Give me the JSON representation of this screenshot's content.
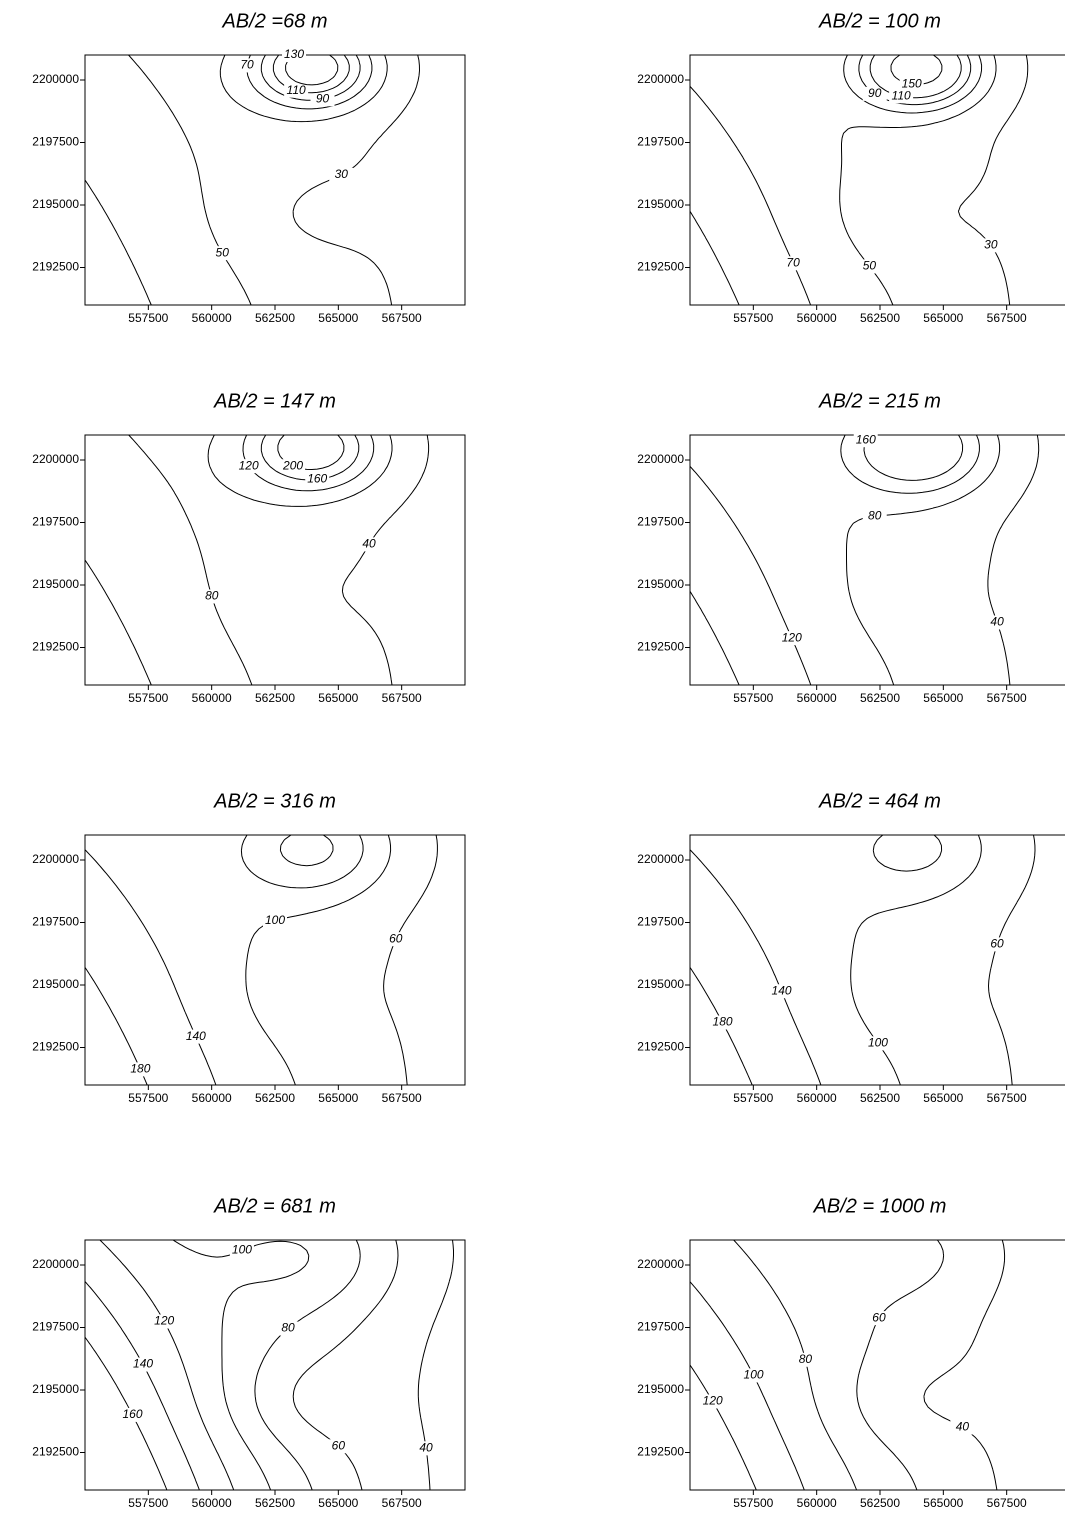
{
  "chart_data": [
    {
      "type": "contour",
      "title": "AB/2 =68 m",
      "levels": [
        30,
        50,
        70,
        90,
        110,
        130
      ],
      "xlim": [
        555000,
        570000
      ],
      "ylim": [
        2191000,
        2201000
      ],
      "xticks": [
        557500,
        560000,
        562500,
        565000,
        567500
      ],
      "yticks": [
        2192500,
        2195000,
        2197500,
        2200000
      ],
      "color": "#000000"
    },
    {
      "type": "contour",
      "title": "AB/2 = 100 m",
      "levels": [
        30,
        50,
        70,
        90,
        110,
        150
      ],
      "xlim": [
        555000,
        570000
      ],
      "ylim": [
        2191000,
        2201000
      ],
      "xticks": [
        557500,
        560000,
        562500,
        565000,
        567500
      ],
      "yticks": [
        2192500,
        2195000,
        2197500,
        2200000
      ],
      "color": "#000000"
    },
    {
      "type": "contour",
      "title": "AB/2 = 147 m",
      "levels": [
        40,
        80,
        120,
        160,
        200
      ],
      "xlim": [
        555000,
        570000
      ],
      "ylim": [
        2191000,
        2201000
      ],
      "xticks": [
        557500,
        560000,
        562500,
        565000,
        567500
      ],
      "yticks": [
        2192500,
        2195000,
        2197500,
        2200000
      ],
      "color": "#000000"
    },
    {
      "type": "contour",
      "title": "AB/2 = 215 m",
      "levels": [
        40,
        80,
        120,
        160
      ],
      "xlim": [
        555000,
        570000
      ],
      "ylim": [
        2191000,
        2201000
      ],
      "xticks": [
        557500,
        560000,
        562500,
        565000,
        567500
      ],
      "yticks": [
        2192500,
        2195000,
        2197500,
        2200000
      ],
      "color": "#000000"
    },
    {
      "type": "contour",
      "title": "AB/2 = 316 m",
      "levels": [
        60,
        100,
        140,
        180
      ],
      "xlim": [
        555000,
        570000
      ],
      "ylim": [
        2191000,
        2201000
      ],
      "xticks": [
        557500,
        560000,
        562500,
        565000,
        567500
      ],
      "yticks": [
        2192500,
        2195000,
        2197500,
        2200000
      ],
      "color": "#000000"
    },
    {
      "type": "contour",
      "title": "AB/2 = 464 m",
      "levels": [
        60,
        100,
        140,
        180
      ],
      "xlim": [
        555000,
        570000
      ],
      "ylim": [
        2191000,
        2201000
      ],
      "xticks": [
        557500,
        560000,
        562500,
        565000,
        567500
      ],
      "yticks": [
        2192500,
        2195000,
        2197500,
        2200000
      ],
      "color": "#000000"
    },
    {
      "type": "contour",
      "title": "AB/2 = 681 m",
      "levels": [
        40,
        60,
        80,
        100,
        120,
        140,
        160
      ],
      "xlim": [
        555000,
        570000
      ],
      "ylim": [
        2191000,
        2201000
      ],
      "xticks": [
        557500,
        560000,
        562500,
        565000,
        567500
      ],
      "yticks": [
        2192500,
        2195000,
        2197500,
        2200000
      ],
      "color": "#000000"
    },
    {
      "type": "contour",
      "title": "AB/2 = 1000 m",
      "levels": [
        40,
        60,
        80,
        100,
        120
      ],
      "xlim": [
        555000,
        570000
      ],
      "ylim": [
        2191000,
        2201000
      ],
      "xticks": [
        557500,
        560000,
        562500,
        565000,
        567500
      ],
      "yticks": [
        2192500,
        2195000,
        2197500,
        2200000
      ],
      "color": "#000000"
    }
  ]
}
